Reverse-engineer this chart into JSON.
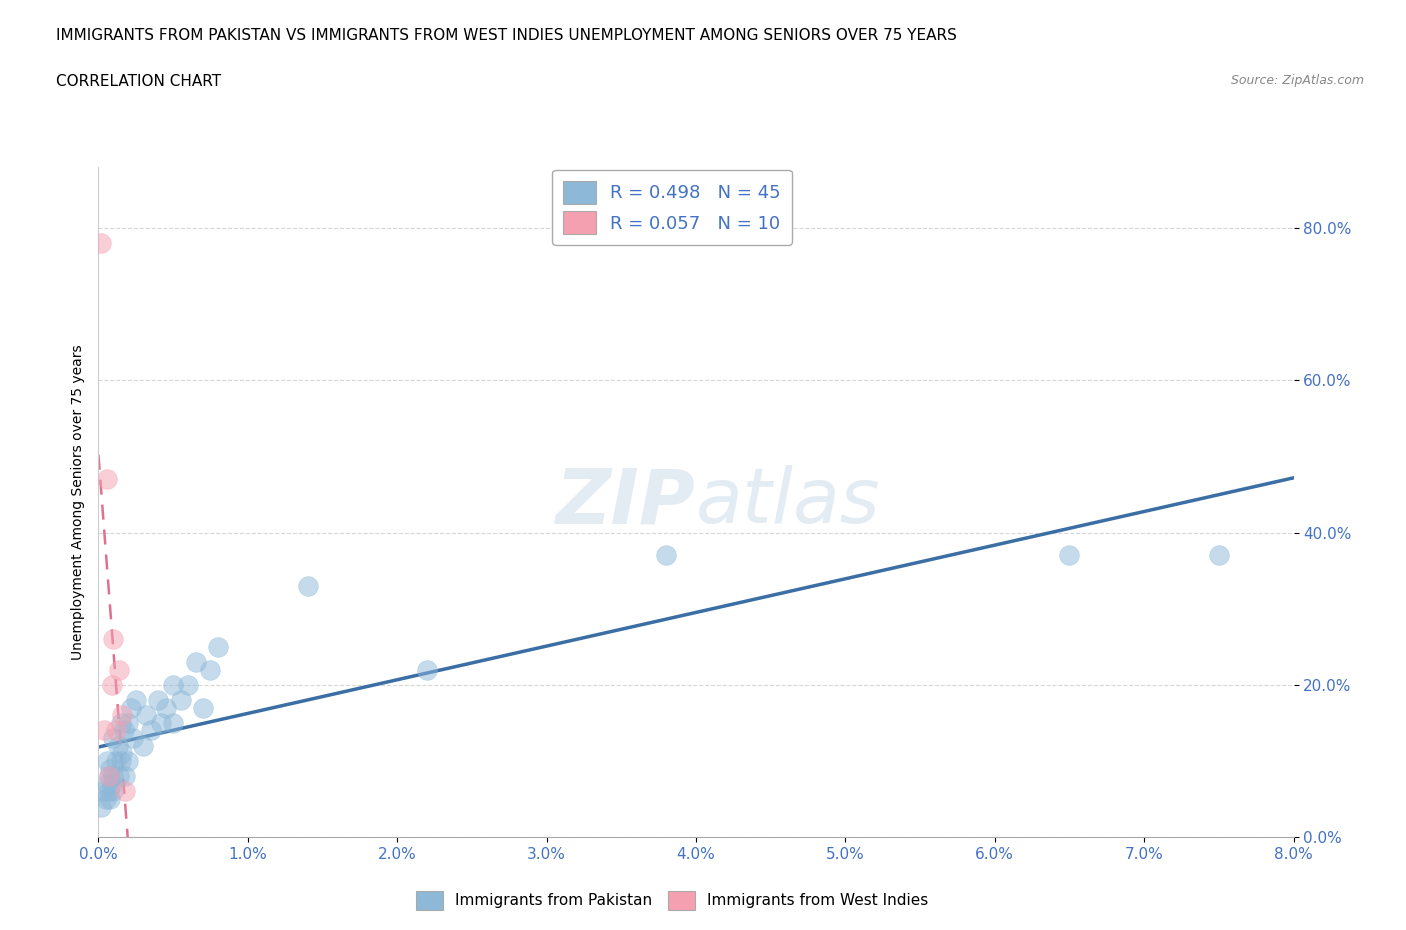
{
  "title_line1": "IMMIGRANTS FROM PAKISTAN VS IMMIGRANTS FROM WEST INDIES UNEMPLOYMENT AMONG SENIORS OVER 75 YEARS",
  "title_line2": "CORRELATION CHART",
  "source_text": "Source: ZipAtlas.com",
  "ylabel_label": "Unemployment Among Seniors over 75 years",
  "xlim": [
    0.0,
    0.08
  ],
  "ylim": [
    0.0,
    0.88
  ],
  "watermark_line1": "ZIP",
  "watermark_line2": "atlas",
  "pakistan_color": "#8DB8D8",
  "pakistan_line_color": "#3A6EA5",
  "west_indies_color": "#F4A0B0",
  "west_indies_line_color": "#E07090",
  "pakistan_R": 0.498,
  "pakistan_N": 45,
  "west_indies_R": 0.057,
  "west_indies_N": 10,
  "pakistan_x": [
    0.0002,
    0.0003,
    0.0005,
    0.0006,
    0.0006,
    0.0007,
    0.0007,
    0.0008,
    0.0008,
    0.0009,
    0.001,
    0.001,
    0.001,
    0.0012,
    0.0013,
    0.0014,
    0.0015,
    0.0015,
    0.0016,
    0.0017,
    0.0018,
    0.002,
    0.002,
    0.0022,
    0.0023,
    0.0025,
    0.003,
    0.0032,
    0.0035,
    0.004,
    0.0042,
    0.0045,
    0.005,
    0.005,
    0.0055,
    0.006,
    0.0065,
    0.007,
    0.0075,
    0.008,
    0.014,
    0.022,
    0.038,
    0.065,
    0.075
  ],
  "pakistan_y": [
    0.04,
    0.06,
    0.05,
    0.07,
    0.1,
    0.06,
    0.08,
    0.05,
    0.09,
    0.07,
    0.06,
    0.08,
    0.13,
    0.1,
    0.12,
    0.08,
    0.1,
    0.15,
    0.11,
    0.14,
    0.08,
    0.1,
    0.15,
    0.17,
    0.13,
    0.18,
    0.12,
    0.16,
    0.14,
    0.18,
    0.15,
    0.17,
    0.15,
    0.2,
    0.18,
    0.2,
    0.23,
    0.17,
    0.22,
    0.25,
    0.33,
    0.22,
    0.37,
    0.37,
    0.37
  ],
  "west_indies_x": [
    0.0002,
    0.0004,
    0.0006,
    0.0007,
    0.0009,
    0.001,
    0.0012,
    0.0014,
    0.0016,
    0.0018
  ],
  "west_indies_y": [
    0.78,
    0.14,
    0.47,
    0.08,
    0.2,
    0.26,
    0.14,
    0.22,
    0.16,
    0.06
  ]
}
